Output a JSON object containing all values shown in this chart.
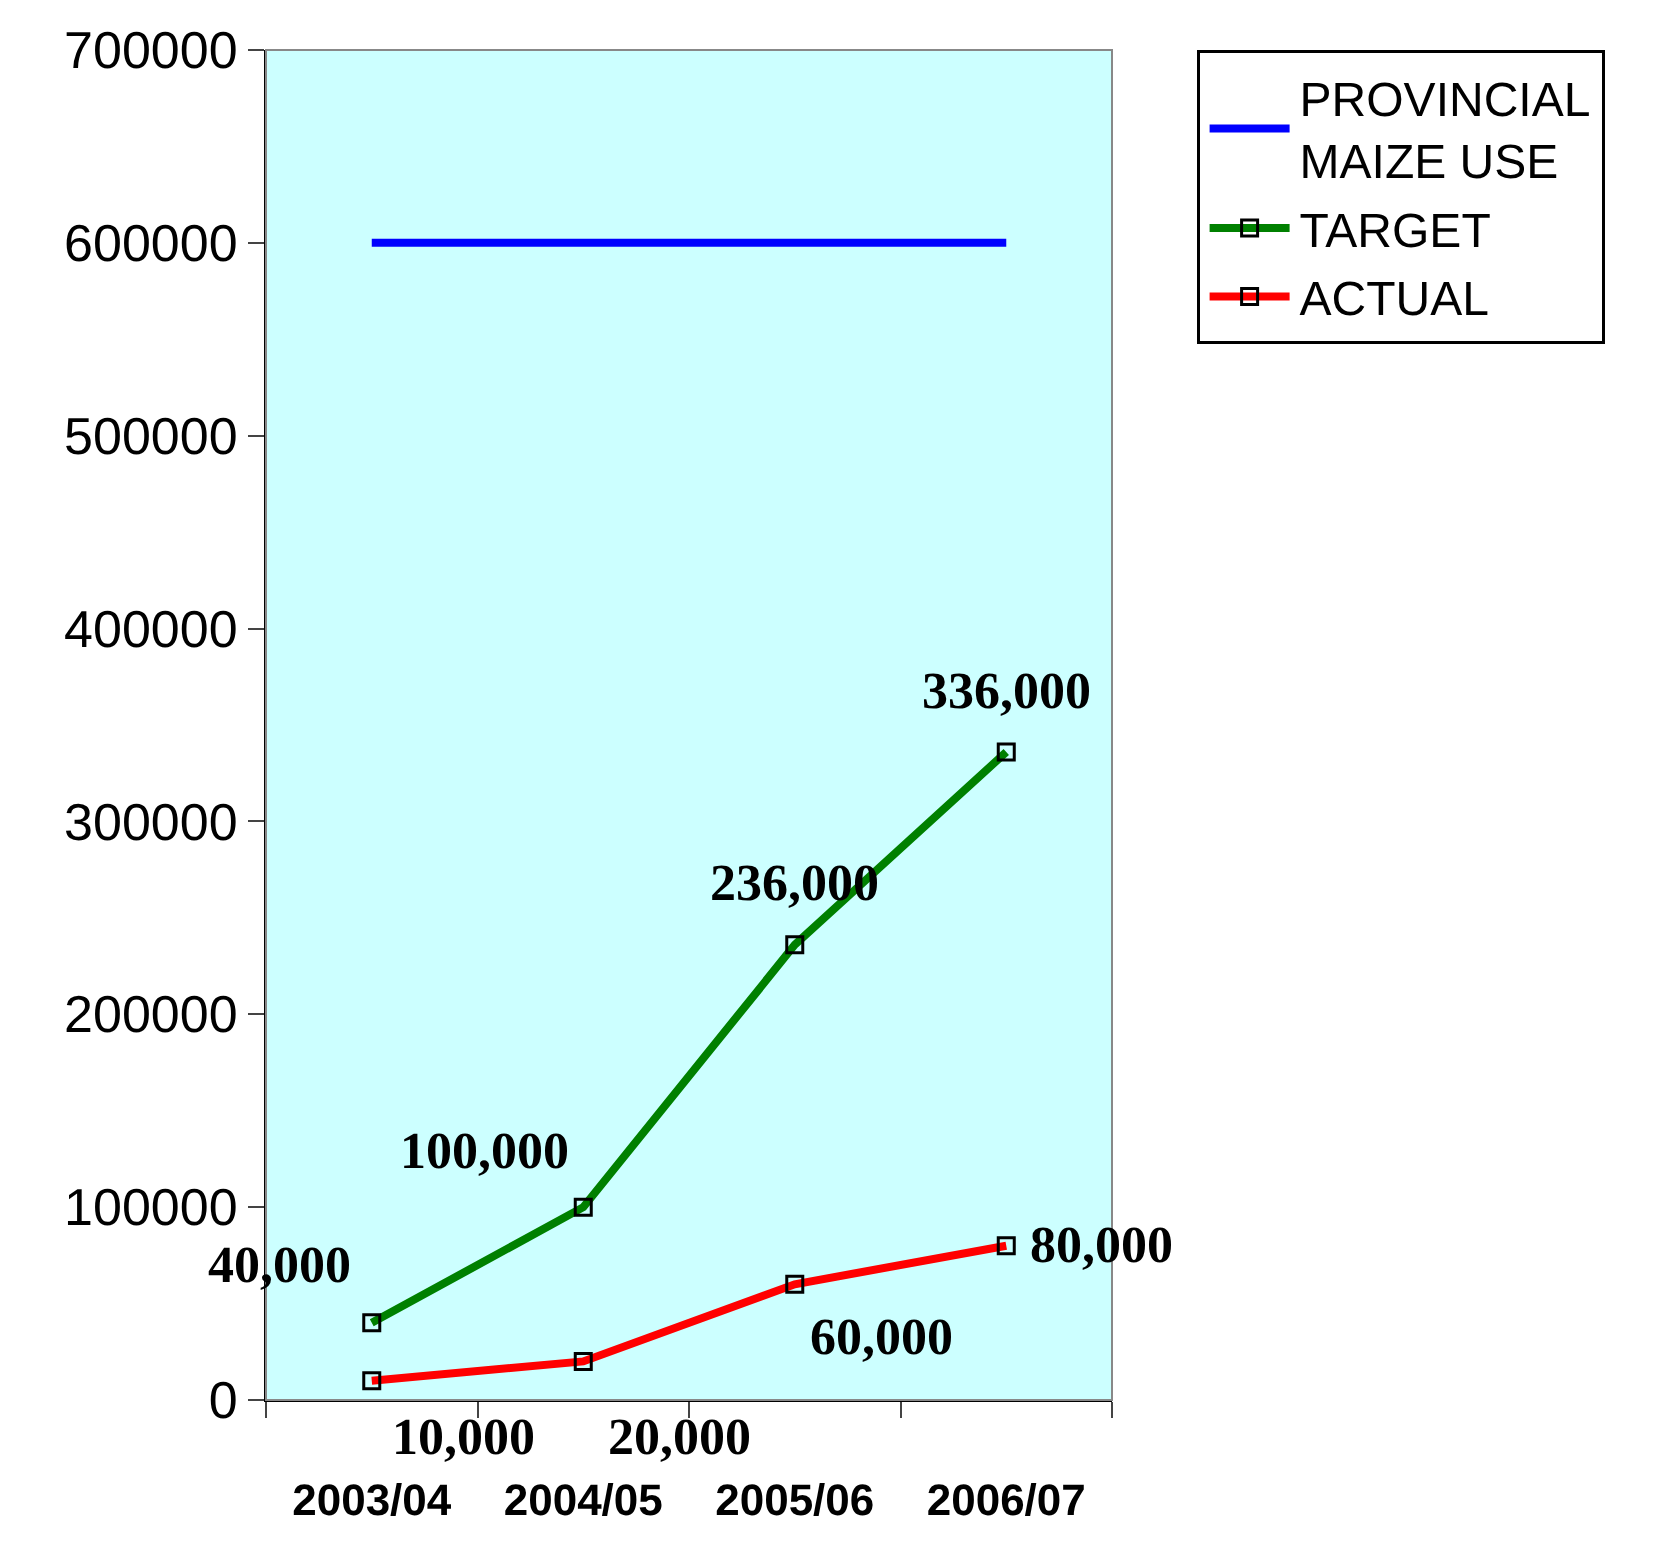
{
  "chart_data": {
    "type": "line",
    "categories": [
      "2003/04",
      "2004/05",
      "2005/06",
      "2006/07"
    ],
    "series": [
      {
        "name": "PROVINCIAL MAIZE USE",
        "color": "#0000ff",
        "values": [
          600000,
          600000,
          600000,
          600000
        ],
        "marker": "none"
      },
      {
        "name": "TARGET",
        "color": "#008000",
        "values": [
          40000,
          100000,
          236000,
          336000
        ],
        "value_labels": [
          "40,000",
          "100,000",
          "236,000",
          "336,000"
        ]
      },
      {
        "name": "ACTUAL",
        "color": "#ff0000",
        "values": [
          10000,
          20000,
          60000,
          80000
        ],
        "value_labels": [
          "10,000",
          "20,000",
          "60,000",
          "80,000"
        ]
      }
    ],
    "ylim": [
      0,
      700000
    ],
    "yticks": [
      0,
      100000,
      200000,
      300000,
      400000,
      500000,
      600000,
      700000
    ],
    "legend": "right",
    "marker": "square"
  }
}
